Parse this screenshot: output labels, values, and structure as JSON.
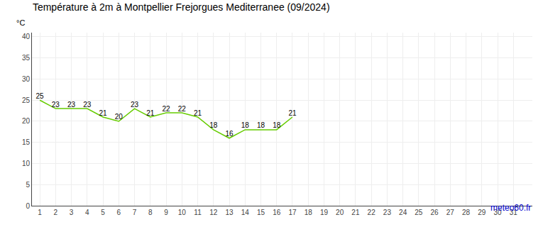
{
  "chart_data": {
    "type": "line",
    "title": "Température à 2m à Montpellier Frejorgues Mediterranee (09/2024)",
    "ylabel": "°C",
    "annotations": [
      {
        "text": "meteo60.fr",
        "color": "#0000cc"
      }
    ],
    "x": [
      1,
      2,
      3,
      4,
      5,
      6,
      7,
      8,
      9,
      10,
      11,
      12,
      13,
      14,
      15,
      16,
      17
    ],
    "series": [
      {
        "name": "Température",
        "color": "#66cc00",
        "values": [
          25,
          23,
          23,
          23,
          21,
          20,
          23,
          21,
          22,
          22,
          21,
          18,
          16,
          18,
          18,
          18,
          21
        ]
      }
    ],
    "xlim": [
      0.5,
      32.2
    ],
    "xticks": [
      1,
      2,
      3,
      4,
      5,
      6,
      7,
      8,
      9,
      10,
      11,
      12,
      13,
      14,
      15,
      16,
      17,
      18,
      19,
      20,
      21,
      22,
      23,
      24,
      25,
      26,
      27,
      28,
      29,
      30,
      31
    ],
    "ylim": [
      0,
      41
    ],
    "yticks": [
      0,
      5,
      10,
      15,
      20,
      25,
      30,
      35,
      40
    ],
    "grid": true,
    "data_labels": true
  }
}
